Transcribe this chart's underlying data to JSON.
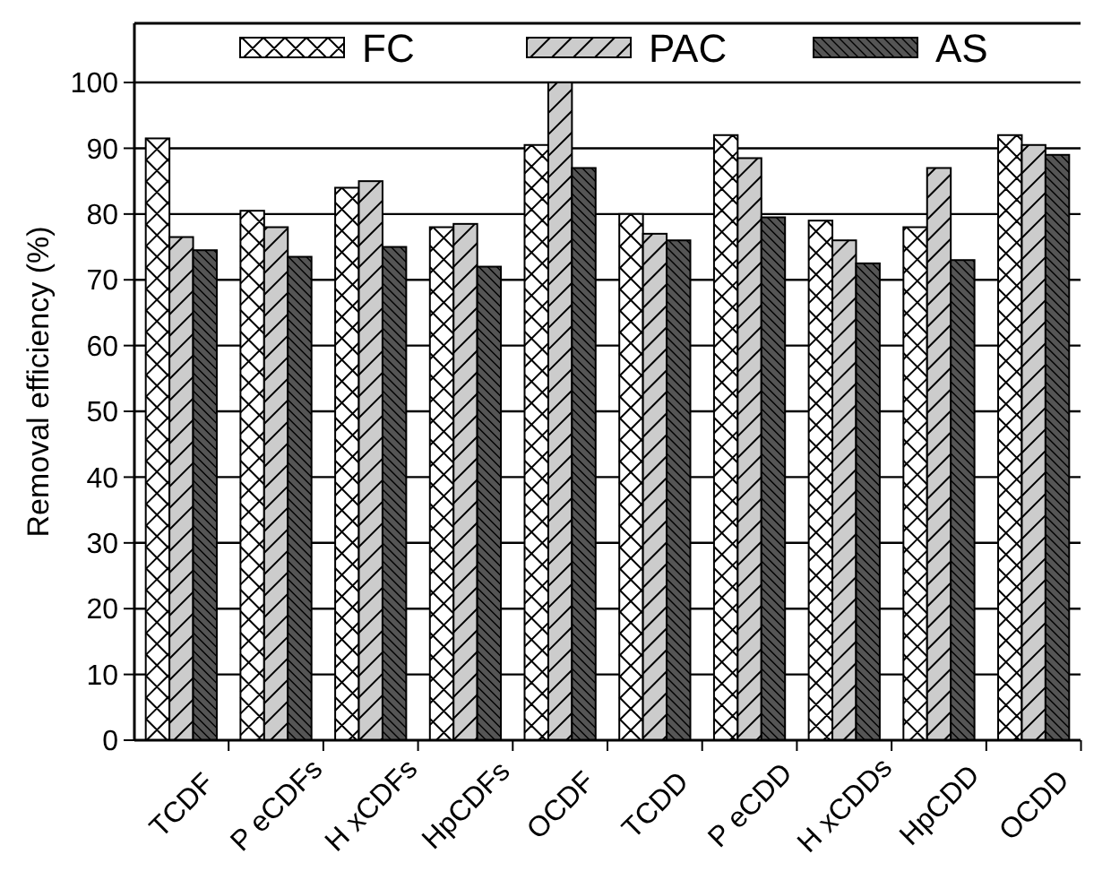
{
  "chart_data": {
    "type": "bar",
    "ylabel": "Removal efficiency (%)",
    "categories": [
      "TCDF",
      "P eCDFs",
      "H xCDFs",
      "HpCDFs",
      "OCDF",
      "TCDD",
      "P eCDD",
      "H xCDDs",
      "HpCDD",
      "OCDD"
    ],
    "series": [
      {
        "name": "FC",
        "color": "#ffffff",
        "values": [
          91.5,
          80.5,
          84,
          78,
          90.5,
          80,
          92,
          79,
          78,
          92
        ]
      },
      {
        "name": "PAC",
        "color": "#cccccc",
        "values": [
          76.5,
          78,
          85,
          78.5,
          100,
          77,
          88.5,
          76,
          87,
          90.5
        ]
      },
      {
        "name": "AS",
        "color": "#555555",
        "values": [
          74.5,
          73.5,
          75,
          72,
          87,
          76,
          79.5,
          72.5,
          73,
          89
        ]
      }
    ],
    "ylim": [
      0,
      109
    ],
    "yticks": [
      0,
      10,
      20,
      30,
      40,
      50,
      60,
      70,
      80,
      90,
      100
    ],
    "grid": "y",
    "legend": "top"
  }
}
